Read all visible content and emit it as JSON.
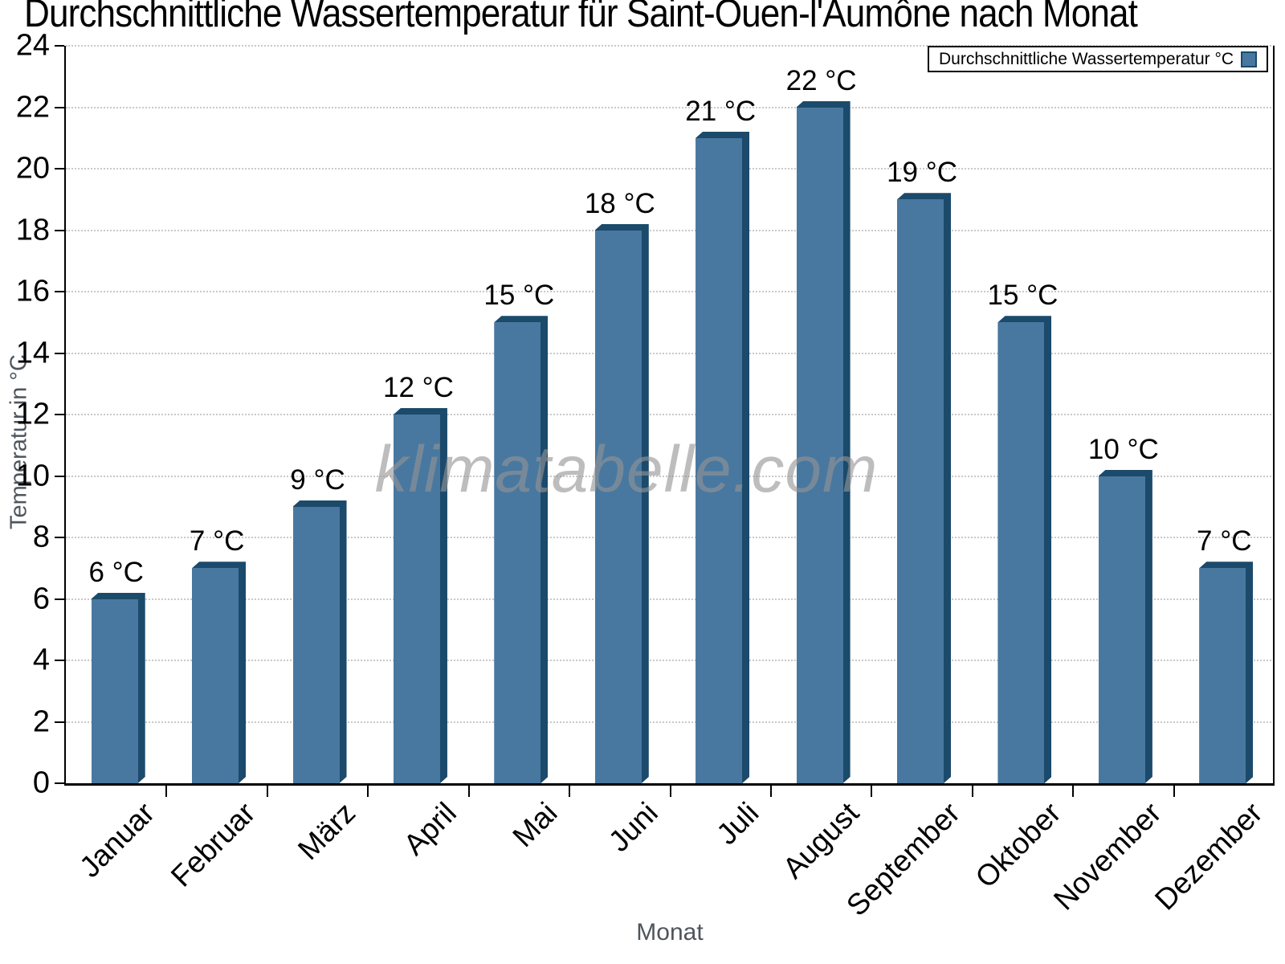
{
  "title": "Durchschnittliche Wassertemperatur für Saint-Ouen-l'Aumône nach Monat",
  "legend": {
    "label": "Durchschnittliche Wassertemperatur °C"
  },
  "watermark": "klimatabelle.com",
  "chart_data": {
    "type": "bar",
    "title": "Durchschnittliche Wassertemperatur für Saint-Ouen-l'Aumône nach Monat",
    "categories": [
      "Januar",
      "Februar",
      "März",
      "April",
      "Mai",
      "Juni",
      "Juli",
      "August",
      "September",
      "Oktober",
      "November",
      "Dezember"
    ],
    "values": [
      6,
      7,
      9,
      12,
      15,
      18,
      21,
      22,
      19,
      15,
      10,
      7
    ],
    "bar_labels": [
      "6 °C",
      "7 °C",
      "9 °C",
      "12 °C",
      "15 °C",
      "18 °C",
      "21 °C",
      "22 °C",
      "19 °C",
      "15 °C",
      "10 °C",
      "7 °C"
    ],
    "xlabel": "Monat",
    "ylabel": "Temperatur in °C",
    "ylim": [
      0,
      24
    ],
    "ytick_step": 2,
    "ytick_labels": [
      "0",
      "2",
      "4",
      "6",
      "8",
      "10",
      "12",
      "14",
      "16",
      "18",
      "20",
      "22",
      "24"
    ],
    "grid": "horizontal-dotted",
    "legend_position": "top-right",
    "legend_label": "Durchschnittliche Wassertemperatur °C",
    "colors": {
      "bar_face": "#4878A0",
      "bar_edge": "#1B4A6B",
      "grid_line": "#C9C9C9",
      "axis_line": "#000000",
      "axis_title": "#4E555C",
      "tick_label": "#000000",
      "watermark": "#949494"
    }
  }
}
